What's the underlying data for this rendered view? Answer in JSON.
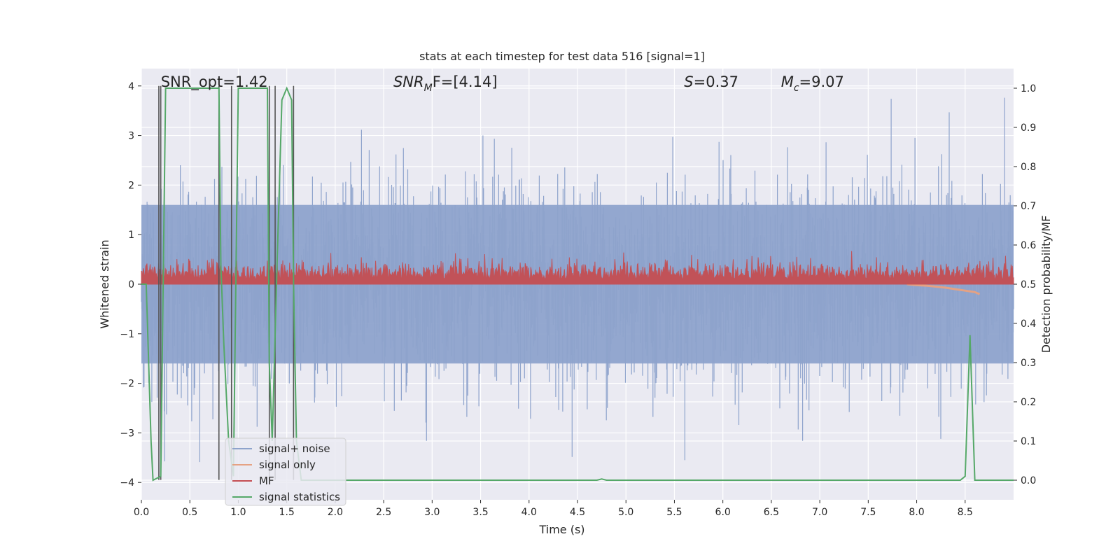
{
  "chart_data": {
    "type": "line",
    "title": "stats at each timestep for test data 516 [signal=1]",
    "xlabel": "Time (s)",
    "ylabel_left": "Whitened strain",
    "ylabel_right": "Detection probability/MF",
    "xlim": [
      0.0,
      9.0
    ],
    "ylim_left": [
      -4.35,
      4.35
    ],
    "ylim_right": [
      -0.05,
      1.05
    ],
    "x_ticks": [
      0.0,
      0.5,
      1.0,
      1.5,
      2.0,
      2.5,
      3.0,
      3.5,
      4.0,
      4.5,
      5.0,
      5.5,
      6.0,
      6.5,
      7.0,
      7.5,
      8.0,
      8.5
    ],
    "x_tick_labels": [
      "0.0",
      "0.5",
      "1.0",
      "1.5",
      "2.0",
      "2.5",
      "3.0",
      "3.5",
      "4.0",
      "4.5",
      "5.0",
      "5.5",
      "6.0",
      "6.5",
      "7.0",
      "7.5",
      "8.0",
      "8.5"
    ],
    "y_ticks_left": [
      4,
      3,
      2,
      1,
      0,
      -1,
      -2,
      -3,
      -4
    ],
    "y_tick_labels_left": [
      "4",
      "3",
      "2",
      "1",
      "0",
      "−1",
      "−2",
      "−3",
      "−4"
    ],
    "y_ticks_right": [
      1.0,
      0.9,
      0.8,
      0.7,
      0.6,
      0.5,
      0.4,
      0.3,
      0.2,
      0.1,
      0.0
    ],
    "y_tick_labels_right": [
      "1.0",
      "0.9",
      "0.8",
      "0.7",
      "0.6",
      "0.5",
      "0.4",
      "0.3",
      "0.2",
      "0.1",
      "0.0"
    ],
    "grid": true,
    "legend_position": "lower-left",
    "series": [
      {
        "name": "signal+ noise",
        "axis": "left",
        "color": "#8ea3cc",
        "description_values": {
          "envelope_upper": 2.2,
          "envelope_lower": -2.0,
          "typical_dense_band": [
            -1.6,
            1.6
          ]
        }
      },
      {
        "name": "signal only",
        "axis": "left",
        "color": "#e5a283",
        "x": [
          7.9,
          8.0,
          8.1,
          8.2,
          8.3,
          8.4,
          8.5,
          8.6,
          8.65
        ],
        "y": [
          0.0,
          -0.02,
          -0.03,
          -0.05,
          -0.07,
          -0.1,
          -0.13,
          -0.16,
          -0.2
        ]
      },
      {
        "name": "MF",
        "axis": "right",
        "color": "#c44e52",
        "description_values": {
          "base": 0.5,
          "typical_max": 0.58,
          "peak_max": 0.62
        }
      },
      {
        "name": "signal statistics",
        "axis": "right",
        "color": "#55a868",
        "x": [
          0.0,
          0.05,
          0.1,
          0.12,
          0.2,
          0.25,
          0.3,
          0.8,
          0.82,
          0.85,
          0.9,
          0.95,
          1.0,
          1.3,
          1.32,
          1.35,
          1.4,
          1.45,
          1.5,
          1.55,
          1.57,
          1.6,
          1.65,
          1.7,
          4.7,
          4.75,
          4.8,
          8.45,
          8.5,
          8.55,
          8.6,
          8.65,
          9.0
        ],
        "y": [
          0.5,
          0.5,
          0.1,
          0.0,
          0.01,
          1.0,
          1.0,
          1.0,
          0.55,
          0.35,
          0.1,
          0.01,
          1.0,
          1.0,
          0.3,
          0.1,
          0.55,
          0.97,
          1.0,
          0.97,
          0.5,
          0.1,
          0.0,
          0.0,
          0.0,
          0.003,
          0.0,
          0.0,
          0.01,
          0.37,
          0.0,
          0.0,
          0.0
        ]
      }
    ],
    "vertical_lines": [
      0.18,
      0.2,
      0.8,
      0.93,
      1.32,
      1.38,
      1.57
    ],
    "vertical_line_color": "#555555",
    "annotations": [
      {
        "text_plain": "SNR_opt=1.42",
        "x": 0.2
      },
      {
        "text_base": "SNR",
        "text_sub": "M",
        "text_tail": "F=[4.14]",
        "x": 2.6
      },
      {
        "text_italic": "S",
        "text_tail": "=0.37",
        "x": 5.6
      },
      {
        "text_base": "M",
        "text_sub": "c",
        "text_tail": "=9.07",
        "x": 6.6
      }
    ]
  }
}
